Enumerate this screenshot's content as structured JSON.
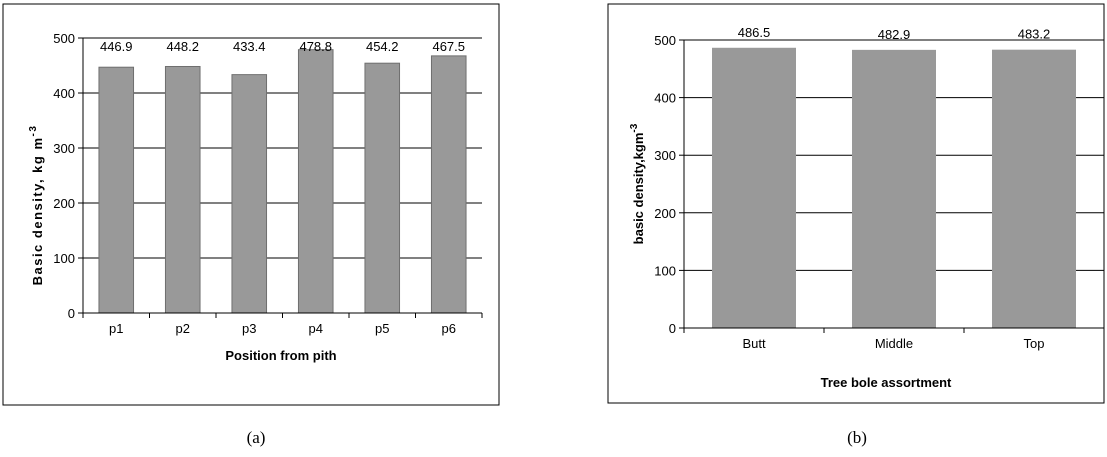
{
  "colors": {
    "bar": "#999999",
    "barEdgeA": "#6f6f6f",
    "text": "#000000"
  },
  "chart_data": [
    {
      "type": "bar",
      "caption": "(a)",
      "categories": [
        "p1",
        "p2",
        "p3",
        "p4",
        "p5",
        "p6"
      ],
      "values": [
        446.9,
        448.2,
        433.4,
        478.8,
        454.2,
        467.5
      ],
      "value_labels": [
        "446.9",
        "448.2",
        "433.4",
        "478.8",
        "454.2",
        "467.5"
      ],
      "xlabel": "Position from pith",
      "ylabel": {
        "main": "Basic density, kg m",
        "sup": "-3"
      },
      "ylim": [
        0,
        500
      ],
      "yticks": [
        0,
        100,
        200,
        300,
        400,
        500
      ],
      "ytick_labels": [
        "0",
        "100",
        "200",
        "300",
        "400",
        "500"
      ],
      "grid": true
    },
    {
      "type": "bar",
      "caption": "(b)",
      "categories": [
        "Butt",
        "Middle",
        "Top"
      ],
      "values": [
        486.5,
        482.9,
        483.2
      ],
      "value_labels": [
        "486.5",
        "482.9",
        "483.2"
      ],
      "xlabel": "Tree bole assortment",
      "ylabel": {
        "main": "basic density,kgm",
        "sup": "-3"
      },
      "ylim": [
        0,
        500
      ],
      "yticks": [
        0,
        100,
        200,
        300,
        400,
        500
      ],
      "ytick_labels": [
        "0",
        "100",
        "200",
        "300",
        "400",
        "500"
      ],
      "grid": true
    }
  ]
}
